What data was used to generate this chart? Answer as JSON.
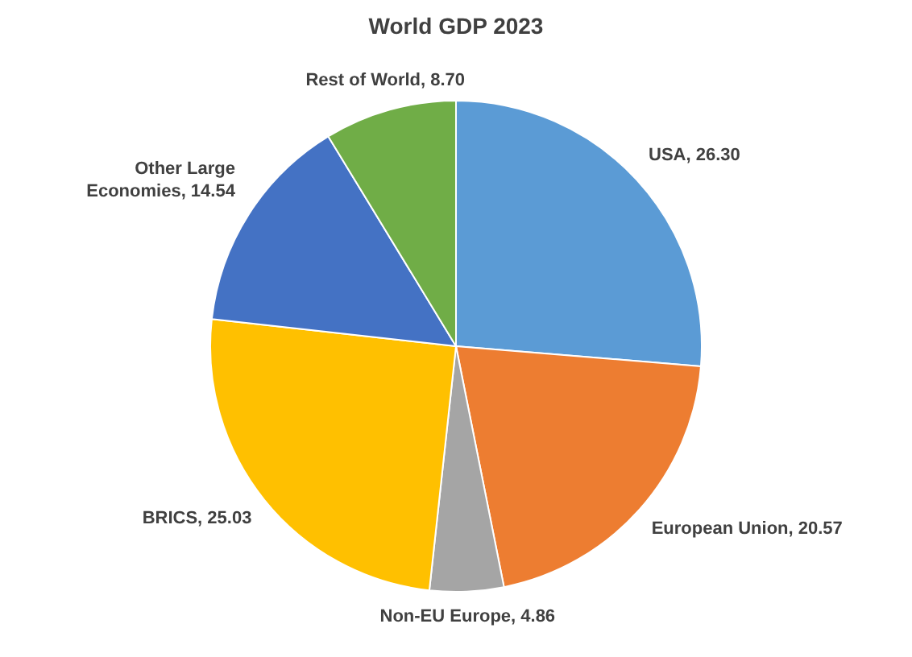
{
  "chart_data": {
    "type": "pie",
    "title": "World GDP 2023",
    "categories": [
      "USA",
      "European Union",
      "Non-EU Europe",
      "BRICS",
      "Other Large Economies",
      "Rest of World"
    ],
    "values": [
      26.3,
      20.57,
      4.86,
      25.03,
      14.54,
      8.7
    ],
    "colors": [
      "#5b9bd5",
      "#ed7d31",
      "#a5a5a5",
      "#ffc000",
      "#4472c4",
      "#70ad47"
    ],
    "value_labels": [
      "26.30",
      "20.57",
      "4.86",
      "25.03",
      "14.54",
      "8.70"
    ],
    "legend": false
  }
}
